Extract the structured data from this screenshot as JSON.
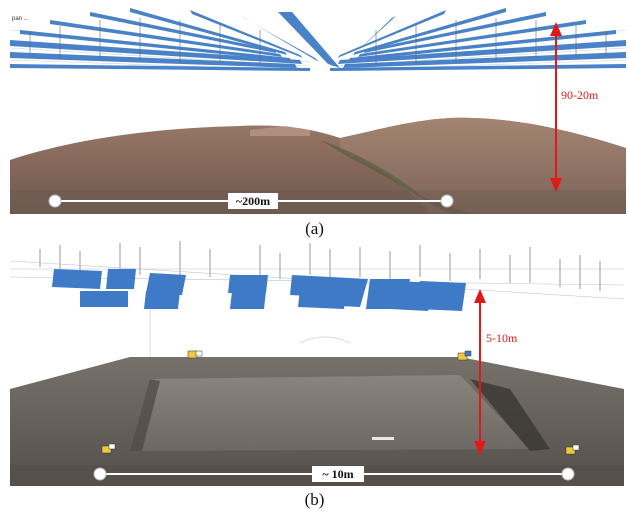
{
  "panels": [
    {
      "caption": "(a)",
      "corner_label": "pan ...",
      "height_label": "90-20m",
      "width_label": "~200m",
      "colors": {
        "camera": "#3b78c4",
        "sky": "#ffffff",
        "hills": "#8a6a5a",
        "arrow": "#e01818"
      }
    },
    {
      "caption": "(b)",
      "height_label": "5-10m",
      "width_label": "~ 10m",
      "colors": {
        "camera": "#3f7ac6",
        "ground": "#6a6560",
        "arrow": "#e01818"
      }
    }
  ],
  "icons": [
    "camera-frustum-icon",
    "ground-control-marker-icon",
    "measurement-endpoint-icon"
  ]
}
